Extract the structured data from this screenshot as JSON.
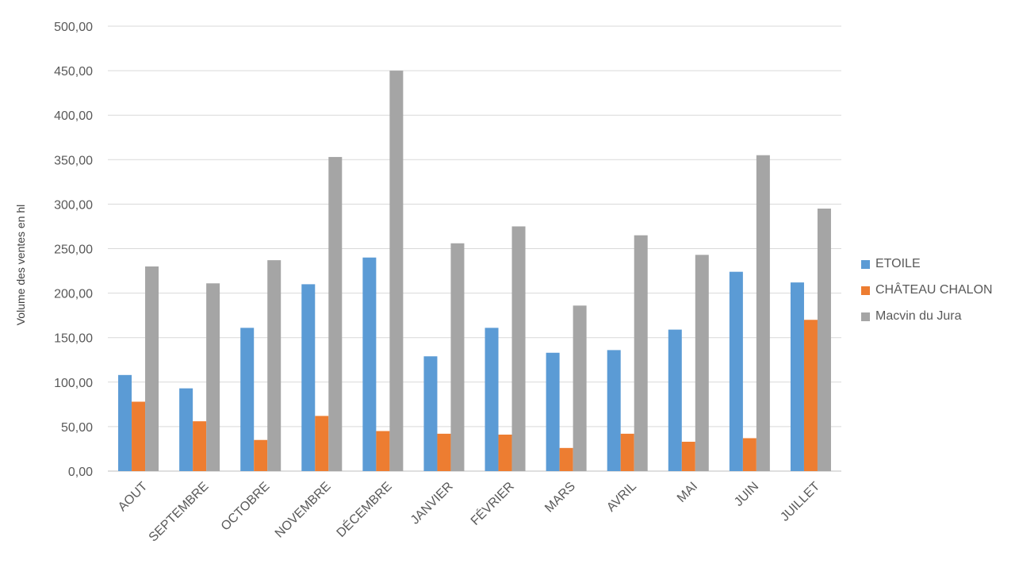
{
  "chart_data": {
    "type": "bar",
    "title": "",
    "xlabel": "",
    "ylabel": "Volume des ventes en hl",
    "ylim": [
      0,
      500
    ],
    "y_ticks": [
      "0,00",
      "50,00",
      "100,00",
      "150,00",
      "200,00",
      "250,00",
      "300,00",
      "350,00",
      "400,00",
      "450,00",
      "500,00"
    ],
    "grid": true,
    "legend_position": "right",
    "categories": [
      "AOUT",
      "SEPTEMBRE",
      "OCTOBRE",
      "NOVEMBRE",
      "DÉCEMBRE",
      "JANVIER",
      "FÉVRIER",
      "MARS",
      "AVRIL",
      "MAI",
      "JUIN",
      "JUILLET"
    ],
    "series": [
      {
        "name": "ETOILE",
        "color": "#5b9bd5",
        "values": [
          108,
          93,
          161,
          210,
          240,
          129,
          161,
          133,
          136,
          159,
          224,
          212
        ]
      },
      {
        "name": "CHÂTEAU CHALON",
        "color": "#ed7d31",
        "values": [
          78,
          56,
          35,
          62,
          45,
          42,
          41,
          26,
          42,
          33,
          37,
          170
        ]
      },
      {
        "name": "Macvin du Jura",
        "color": "#a5a5a5",
        "values": [
          230,
          211,
          237,
          353,
          450,
          256,
          275,
          186,
          265,
          243,
          355,
          295
        ]
      }
    ]
  }
}
